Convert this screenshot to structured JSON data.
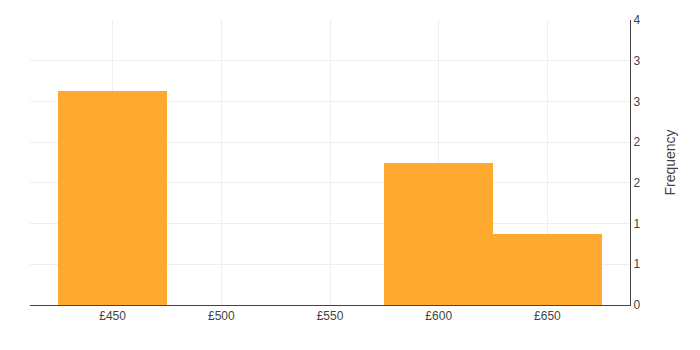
{
  "chart_data": {
    "type": "histogram",
    "ylabel": "Frequency",
    "bins": [
      425,
      475,
      525,
      575,
      625,
      675
    ],
    "values": [
      3,
      0,
      0,
      2,
      1
    ],
    "color": "#FFA931",
    "xlim": [
      412,
      688
    ],
    "xticks": [
      {
        "value": 450,
        "label": "£450"
      },
      {
        "value": 500,
        "label": "£500"
      },
      {
        "value": 550,
        "label": "£550"
      },
      {
        "value": 600,
        "label": "£600"
      },
      {
        "value": 650,
        "label": "£650"
      }
    ],
    "ylim": [
      0,
      4
    ],
    "yticks": [
      0,
      {
        "value": 0.5714285714,
        "label": "1"
      },
      {
        "value": 1.1428571429,
        "label": "1"
      },
      {
        "value": 1.7142857143,
        "label": "2"
      },
      {
        "value": 2.2857142857,
        "label": "2"
      },
      {
        "value": 2.8571428571,
        "label": "3"
      },
      {
        "value": 3.4285714286,
        "label": "3"
      },
      4
    ],
    "grid": true
  }
}
